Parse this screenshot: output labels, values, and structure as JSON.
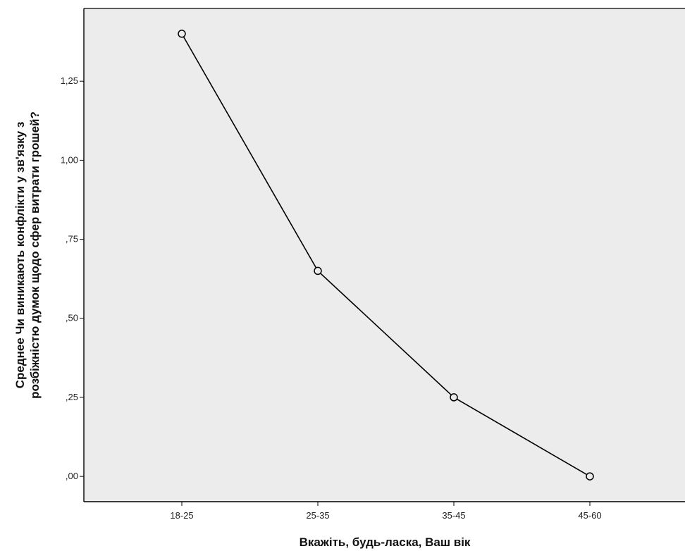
{
  "colors": {
    "plot_background": "#ececec",
    "axis": "#000000",
    "line": "#000000",
    "marker_fill": "#ececec"
  },
  "chart_data": {
    "type": "line",
    "title": "",
    "xlabel": "Вкажіть, будь-ласка, Ваш вік",
    "ylabel_lines": [
      "Среднее Чи виникають конфлікти у зв'язку з",
      "розбіжністю думок щодо сфер витрати грошей?"
    ],
    "categories": [
      "18-25",
      "25-35",
      "35-45",
      "45-60"
    ],
    "series": [
      {
        "values": [
          1.4,
          0.65,
          0.25,
          0.0
        ],
        "marker": "circle-open"
      }
    ],
    "ylim": [
      -0.08,
      1.48
    ],
    "yticks": [
      0.0,
      0.25,
      0.5,
      0.75,
      1.0,
      1.25
    ],
    "ytick_labels": [
      ",00",
      ",25",
      ",50",
      ",75",
      "1,00",
      "1,25"
    ],
    "grid": false,
    "legend": "none"
  }
}
